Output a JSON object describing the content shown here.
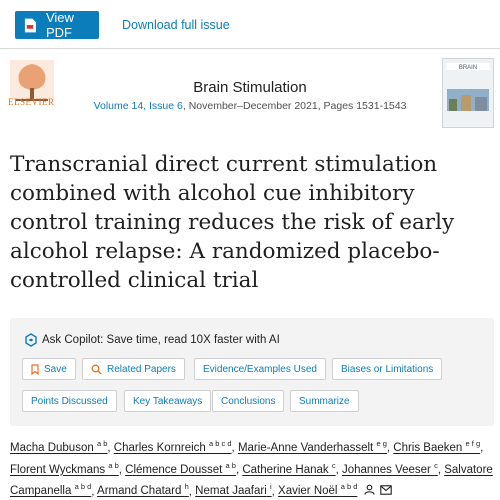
{
  "toolbar": {
    "view_pdf": "View PDF",
    "download_issue": "Download full issue"
  },
  "journal": {
    "publisher": "ELSEVIER",
    "title": "Brain Stimulation",
    "volume_issue": "Volume 14, Issue 6",
    "date_pages": ", November–December 2021, Pages 1531-1543",
    "cover_text": "BRAIN"
  },
  "article": {
    "title_lines": [
      "Transcranial direct current stimulation",
      "combined with alcohol cue inhibitory",
      "control training reduces the risk of early",
      "alcohol relapse: A randomized placebo-",
      "controlled clinical trial"
    ]
  },
  "copilot": {
    "heading": "Ask Copilot: Save time, read 10X faster with AI",
    "chips": [
      "Save",
      "Related Papers",
      "Evidence/Examples Used",
      "Biases or Limitations",
      "Points Discussed",
      "Key Takeaways",
      "Conclusions",
      "Summarize"
    ]
  },
  "authors": [
    {
      "name": "Macha Dubuson",
      "aff": "a b"
    },
    {
      "name": "Charles Kornreich",
      "aff": "a b c d"
    },
    {
      "name": "Marie-Anne Vanderhasselt",
      "aff": "e g"
    },
    {
      "name": "Chris Baeken",
      "aff": "e f g"
    },
    {
      "name": "Florent Wyckmans",
      "aff": "a b"
    },
    {
      "name": "Clémence Dousset",
      "aff": "a b"
    },
    {
      "name": "Catherine Hanak",
      "aff": "c"
    },
    {
      "name": "Johannes Veeser",
      "aff": "c"
    },
    {
      "name": "Salvatore Campanella",
      "aff": "a b d"
    },
    {
      "name": "Armand Chatard",
      "aff": "h"
    },
    {
      "name": "Nemat Jaafari",
      "aff": "i"
    },
    {
      "name": "Xavier Noël",
      "aff": "a b d"
    }
  ],
  "colors": {
    "accent": "#0c7dbb",
    "elsevier_orange": "#e9711c",
    "panel_bg": "#f3f3f3"
  }
}
